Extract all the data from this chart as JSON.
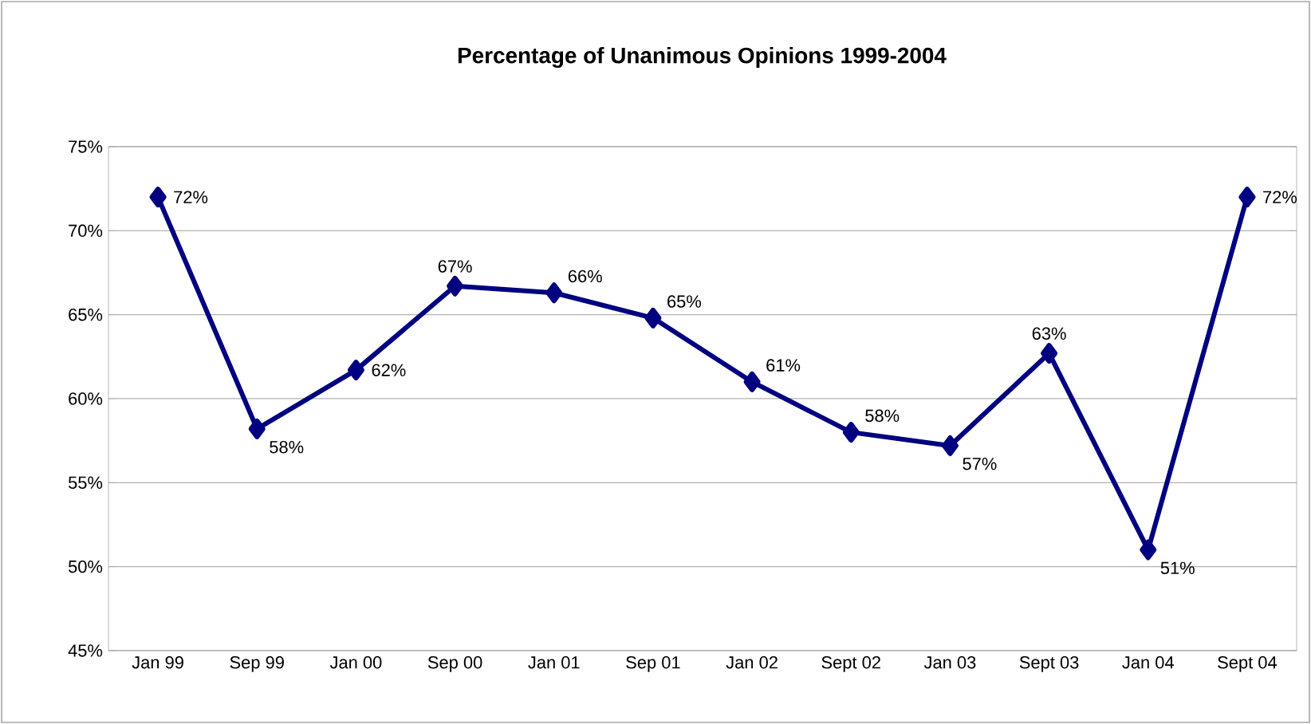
{
  "chart_data": {
    "type": "line",
    "title": "Percentage of Unanimous Opinions 1999-2004",
    "categories": [
      "Jan 99",
      "Sep 99",
      "Jan 00",
      "Sep 00",
      "Jan 01",
      "Sep 01",
      "Jan 02",
      "Sept 02",
      "Jan 03",
      "Sept 03",
      "Jan 04",
      "Sept 04"
    ],
    "series": [
      {
        "color": "#000080",
        "values": [
          72,
          58.2,
          61.7,
          66.7,
          66.3,
          64.8,
          61,
          58,
          57.2,
          62.7,
          51,
          72
        ],
        "value_labels": [
          "72%",
          "58%",
          "62%",
          "67%",
          "66%",
          "65%",
          "61%",
          "58%",
          "57%",
          "63%",
          "51%",
          "72%"
        ]
      }
    ],
    "ylim": [
      45,
      75
    ],
    "yticks": [
      {
        "value": 45,
        "label": "45%"
      },
      {
        "value": 50,
        "label": "50%"
      },
      {
        "value": 55,
        "label": "55%"
      },
      {
        "value": 60,
        "label": "60%"
      },
      {
        "value": 65,
        "label": "65%"
      },
      {
        "value": 70,
        "label": "70%"
      },
      {
        "value": 75,
        "label": "75%"
      }
    ],
    "grid": "y",
    "marker": "diamond",
    "line_style": "solid"
  }
}
